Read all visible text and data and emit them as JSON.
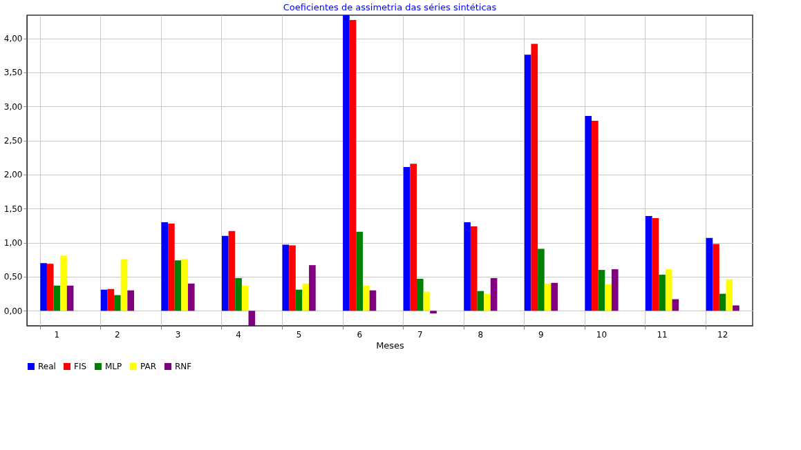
{
  "chart_data": {
    "type": "bar",
    "title": "Coeficientes de assimetria das séries sintéticas",
    "xlabel": "Meses",
    "categories": [
      "1",
      "2",
      "3",
      "4",
      "5",
      "6",
      "7",
      "8",
      "9",
      "10",
      "11",
      "12"
    ],
    "series": [
      {
        "name": "Real",
        "color": "#0000ff",
        "values": [
          0.7,
          0.31,
          1.3,
          1.1,
          0.97,
          4.34,
          2.11,
          1.3,
          3.76,
          2.86,
          1.39,
          1.07
        ]
      },
      {
        "name": "FIS",
        "color": "#ff0000",
        "values": [
          0.69,
          0.32,
          1.28,
          1.17,
          0.96,
          4.27,
          2.16,
          1.24,
          3.92,
          2.79,
          1.36,
          0.98
        ]
      },
      {
        "name": "MLP",
        "color": "#008000",
        "values": [
          0.37,
          0.23,
          0.74,
          0.48,
          0.31,
          1.16,
          0.47,
          0.29,
          0.91,
          0.6,
          0.53,
          0.25
        ]
      },
      {
        "name": "PAR",
        "color": "#ffff00",
        "values": [
          0.81,
          0.76,
          0.76,
          0.37,
          0.4,
          0.37,
          0.28,
          0.25,
          0.4,
          0.39,
          0.61,
          0.46
        ]
      },
      {
        "name": "RNF",
        "color": "#800080",
        "values": [
          0.37,
          0.3,
          0.4,
          -0.22,
          0.67,
          0.3,
          -0.04,
          0.48,
          0.41,
          0.61,
          0.17,
          0.08
        ]
      }
    ],
    "ylim": [
      -0.22,
      4.34
    ],
    "yticks": [
      {
        "value": 0,
        "label": "0,00"
      },
      {
        "value": 0.5,
        "label": "0,50"
      },
      {
        "value": 1,
        "label": "1,00"
      },
      {
        "value": 1.5,
        "label": "1,50"
      },
      {
        "value": 2,
        "label": "2,00"
      },
      {
        "value": 2.5,
        "label": "2,50"
      },
      {
        "value": 3,
        "label": "3,00"
      },
      {
        "value": 3.5,
        "label": "3,50"
      },
      {
        "value": 4,
        "label": "4,00"
      }
    ],
    "grid": true,
    "legend": "bottom"
  }
}
